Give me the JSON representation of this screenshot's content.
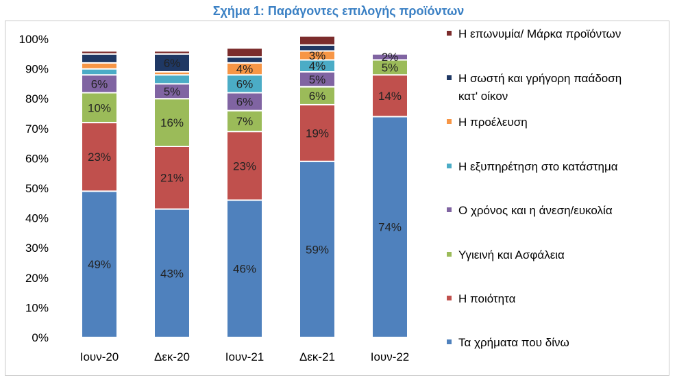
{
  "chart_data": {
    "type": "bar",
    "stacked": true,
    "title": "Σχήμα 1: Παράγοντες επιλογής προϊόντων",
    "categories": [
      "Ιουν-20",
      "Δεκ-20",
      "Ιουν-21",
      "Δεκ-21",
      "Ιουν-22"
    ],
    "ylim": [
      0,
      100
    ],
    "ytick_labels": [
      "0%",
      "10%",
      "20%",
      "30%",
      "40%",
      "50%",
      "60%",
      "70%",
      "80%",
      "90%",
      "100%"
    ],
    "grid": false,
    "legend_position": "right",
    "series": [
      {
        "name": "Τα χρήματα που δίνω",
        "color": "#4f81bd",
        "values": [
          49,
          43,
          46,
          59,
          74
        ],
        "labels": [
          "49%",
          "43%",
          "46%",
          "59%",
          "74%"
        ]
      },
      {
        "name": "Η ποιότητα",
        "color": "#c0504d",
        "values": [
          23,
          21,
          23,
          19,
          14
        ],
        "labels": [
          "23%",
          "21%",
          "23%",
          "19%",
          "14%"
        ]
      },
      {
        "name": "Υγιεινή και Ασφάλεια",
        "color": "#9bbb59",
        "values": [
          10,
          16,
          7,
          6,
          5
        ],
        "labels": [
          "10%",
          "16%",
          "7%",
          "6%",
          "5%"
        ]
      },
      {
        "name": "Ο χρόνος και η άνεση/ευκολία",
        "color": "#8064a2",
        "values": [
          6,
          5,
          6,
          5,
          2
        ],
        "labels": [
          "6%",
          "5%",
          "6%",
          "5%",
          "2%"
        ]
      },
      {
        "name": "Η εξυπηρέτηση στο κατάστημα",
        "color": "#4bacc6",
        "values": [
          2,
          3,
          6,
          4,
          0
        ],
        "labels": [
          "",
          "",
          "6%",
          "4%",
          ""
        ]
      },
      {
        "name": "Η προέλευση",
        "color": "#f79646",
        "values": [
          2,
          1,
          4,
          3,
          0
        ],
        "labels": [
          "",
          "",
          "4%",
          "3%",
          ""
        ]
      },
      {
        "name": "Η σωστή και γρήγορη παάδοση κατ' οίκον",
        "color": "#1f3864",
        "values": [
          3,
          6,
          2,
          2,
          0
        ],
        "labels": [
          "",
          "6%",
          "",
          "",
          ""
        ]
      },
      {
        "name": "Η επωνυμία/ Μάρκα προϊόντων",
        "color": "#7b2c2c",
        "values": [
          1,
          1,
          3,
          3,
          0
        ],
        "labels": [
          "",
          "",
          "",
          "",
          ""
        ]
      }
    ],
    "legend_order": [
      7,
      6,
      5,
      4,
      3,
      2,
      1,
      0
    ]
  }
}
